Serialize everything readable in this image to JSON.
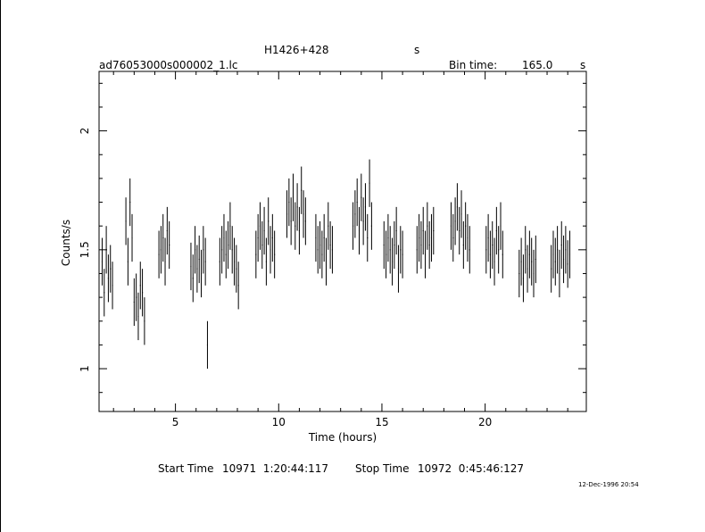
{
  "header": {
    "object": "H1426+428",
    "object_unit": "s",
    "filename": "ad76053000s000002_1.lc",
    "bin_label": "Bin time:",
    "bin_value": "165.0",
    "bin_unit": "s"
  },
  "footer": {
    "start_label": "Start Time",
    "start_value": "10971  1:20:44:117",
    "stop_label": "Stop Time",
    "stop_value": "10972  0:45:46:127",
    "timestamp": "12-Dec-1996 20:54"
  },
  "chart_data": {
    "type": "scatter",
    "xlabel": "Time (hours)",
    "ylabel": "Counts/s",
    "xlim": [
      1.3,
      24.9
    ],
    "ylim": [
      0.82,
      2.25
    ],
    "xticks": [
      5,
      10,
      15,
      20
    ],
    "xtick_labels": [
      "5",
      "10",
      "15",
      "20"
    ],
    "yticks": [
      1,
      1.5,
      2
    ],
    "ytick_labels": [
      "1",
      "1.5",
      "2"
    ],
    "grid": false,
    "error_bars": "vertical, approx +/-0.1 counts/s",
    "segments": [
      {
        "x": [
          1.45,
          1.55,
          1.65,
          1.75,
          1.85,
          1.95
        ],
        "y": [
          1.45,
          1.32,
          1.5,
          1.38,
          1.42,
          1.35
        ]
      },
      {
        "x": [
          2.6,
          2.7,
          2.8,
          2.9,
          3.0,
          3.1,
          3.2,
          3.3,
          3.4,
          3.5
        ],
        "y": [
          1.62,
          1.45,
          1.7,
          1.55,
          1.28,
          1.3,
          1.22,
          1.35,
          1.32,
          1.2
        ]
      },
      {
        "x": [
          4.2,
          4.3,
          4.4,
          4.5,
          4.6,
          4.7
        ],
        "y": [
          1.48,
          1.5,
          1.55,
          1.45,
          1.58,
          1.52
        ]
      },
      {
        "x": [
          5.75,
          5.85,
          5.95,
          6.05,
          6.15,
          6.25,
          6.35,
          6.45,
          6.55
        ],
        "y": [
          1.43,
          1.38,
          1.5,
          1.42,
          1.46,
          1.4,
          1.5,
          1.45,
          1.1
        ]
      },
      {
        "x": [
          7.15,
          7.25,
          7.35,
          7.45,
          7.55,
          7.65,
          7.75,
          7.85,
          7.95,
          8.05
        ],
        "y": [
          1.45,
          1.5,
          1.55,
          1.48,
          1.52,
          1.6,
          1.5,
          1.45,
          1.42,
          1.35
        ]
      },
      {
        "x": [
          8.9,
          9.0,
          9.1,
          9.2,
          9.3,
          9.4,
          9.5,
          9.6,
          9.7,
          9.8
        ],
        "y": [
          1.48,
          1.55,
          1.6,
          1.52,
          1.58,
          1.45,
          1.62,
          1.5,
          1.55,
          1.48
        ]
      },
      {
        "x": [
          10.4,
          10.5,
          10.6,
          10.7,
          10.8,
          10.9,
          11.0,
          11.1,
          11.2,
          11.3
        ],
        "y": [
          1.65,
          1.7,
          1.62,
          1.72,
          1.6,
          1.68,
          1.58,
          1.75,
          1.65,
          1.62
        ]
      },
      {
        "x": [
          11.8,
          11.9,
          12.0,
          12.1,
          12.2,
          12.3,
          12.4,
          12.5,
          12.6
        ],
        "y": [
          1.55,
          1.5,
          1.52,
          1.48,
          1.55,
          1.45,
          1.6,
          1.52,
          1.5
        ]
      },
      {
        "x": [
          13.6,
          13.7,
          13.8,
          13.9,
          14.0,
          14.1,
          14.2,
          14.3,
          14.4,
          14.5
        ],
        "y": [
          1.6,
          1.65,
          1.7,
          1.58,
          1.72,
          1.62,
          1.68,
          1.55,
          1.78,
          1.6
        ]
      },
      {
        "x": [
          15.1,
          15.2,
          15.3,
          15.4,
          15.5,
          15.6,
          15.7,
          15.8,
          15.9,
          16.0
        ],
        "y": [
          1.52,
          1.48,
          1.55,
          1.5,
          1.45,
          1.52,
          1.58,
          1.42,
          1.5,
          1.48
        ]
      },
      {
        "x": [
          16.7,
          16.8,
          16.9,
          17.0,
          17.1,
          17.2,
          17.3,
          17.4,
          17.5
        ],
        "y": [
          1.5,
          1.55,
          1.52,
          1.58,
          1.48,
          1.6,
          1.52,
          1.55,
          1.58
        ]
      },
      {
        "x": [
          18.35,
          18.45,
          18.55,
          18.65,
          18.75,
          18.85,
          18.95,
          19.05,
          19.15,
          19.25
        ],
        "y": [
          1.6,
          1.55,
          1.62,
          1.68,
          1.58,
          1.65,
          1.52,
          1.6,
          1.55,
          1.5
        ]
      },
      {
        "x": [
          20.05,
          20.15,
          20.25,
          20.35,
          20.45,
          20.55,
          20.65,
          20.75,
          20.85
        ],
        "y": [
          1.5,
          1.55,
          1.48,
          1.52,
          1.45,
          1.58,
          1.5,
          1.6,
          1.48
        ]
      },
      {
        "x": [
          21.65,
          21.75,
          21.85,
          21.95,
          22.05,
          22.15,
          22.25,
          22.35,
          22.45
        ],
        "y": [
          1.4,
          1.45,
          1.38,
          1.5,
          1.42,
          1.48,
          1.45,
          1.4,
          1.46
        ]
      },
      {
        "x": [
          23.2,
          23.3,
          23.4,
          23.5,
          23.6,
          23.7,
          23.8,
          23.9,
          24.0,
          24.1
        ],
        "y": [
          1.42,
          1.48,
          1.45,
          1.5,
          1.4,
          1.52,
          1.46,
          1.5,
          1.44,
          1.48
        ]
      }
    ]
  }
}
